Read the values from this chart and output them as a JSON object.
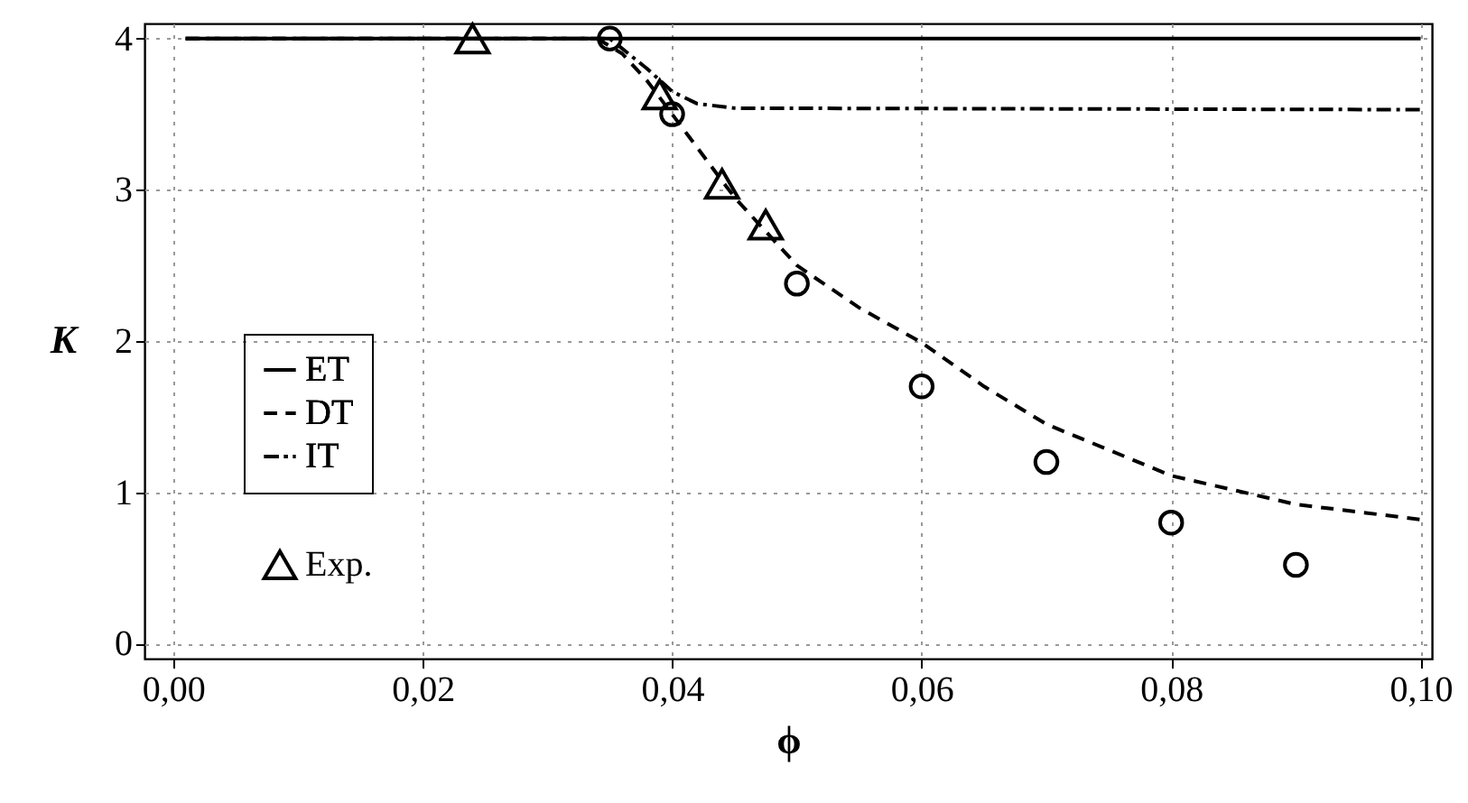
{
  "chart_data": {
    "type": "line",
    "xlabel": "ϕ",
    "ylabel": "K",
    "xlim": [
      -0.0023,
      0.1009
    ],
    "ylim": [
      -0.1,
      4.1
    ],
    "xticks": [
      {
        "value": 0,
        "label": "0,00"
      },
      {
        "value": 0.02,
        "label": "0,02"
      },
      {
        "value": 0.04,
        "label": "0,04"
      },
      {
        "value": 0.06,
        "label": "0,06"
      },
      {
        "value": 0.08,
        "label": "0,08"
      },
      {
        "value": 0.1,
        "label": "0,10"
      }
    ],
    "yticks": [
      0,
      1,
      2,
      3,
      4
    ],
    "grid": true,
    "legend": "left",
    "series": [
      {
        "name": "ET",
        "line_style": "solid",
        "color": "#000000",
        "x": [
          0.001,
          0.1
        ],
        "values": [
          4,
          4
        ]
      },
      {
        "name": "DT",
        "line_style": "dashed",
        "color": "#000000",
        "x": [
          0.001,
          0.034,
          0.036,
          0.038,
          0.04,
          0.045,
          0.05,
          0.055,
          0.06,
          0.065,
          0.07,
          0.08,
          0.09,
          0.1
        ],
        "values": [
          4,
          4,
          3.9,
          3.72,
          3.5,
          2.95,
          2.5,
          2.22,
          1.99,
          1.7,
          1.45,
          1.11,
          0.92,
          0.82
        ]
      },
      {
        "name": "IT",
        "line_style": "dashdot",
        "color": "#000000",
        "x": [
          0.001,
          0.035,
          0.038,
          0.04,
          0.042,
          0.045,
          0.1
        ],
        "values": [
          4,
          4,
          3.8,
          3.65,
          3.57,
          3.54,
          3.53
        ]
      },
      {
        "name": "Exp.",
        "type": "scatter",
        "marker": "triangle",
        "color": "#000000",
        "x": [
          0.024,
          0.039,
          0.044,
          0.0475
        ],
        "values": [
          4,
          3.63,
          3.04,
          2.77
        ]
      },
      {
        "type": "scatter",
        "marker": "circle",
        "color": "#000000",
        "x": [
          0.035,
          0.04,
          0.05,
          0.06,
          0.07,
          0.08,
          0.09
        ],
        "values": [
          4,
          3.5,
          2.38,
          1.7,
          1.2,
          0.8,
          0.52
        ]
      }
    ]
  }
}
